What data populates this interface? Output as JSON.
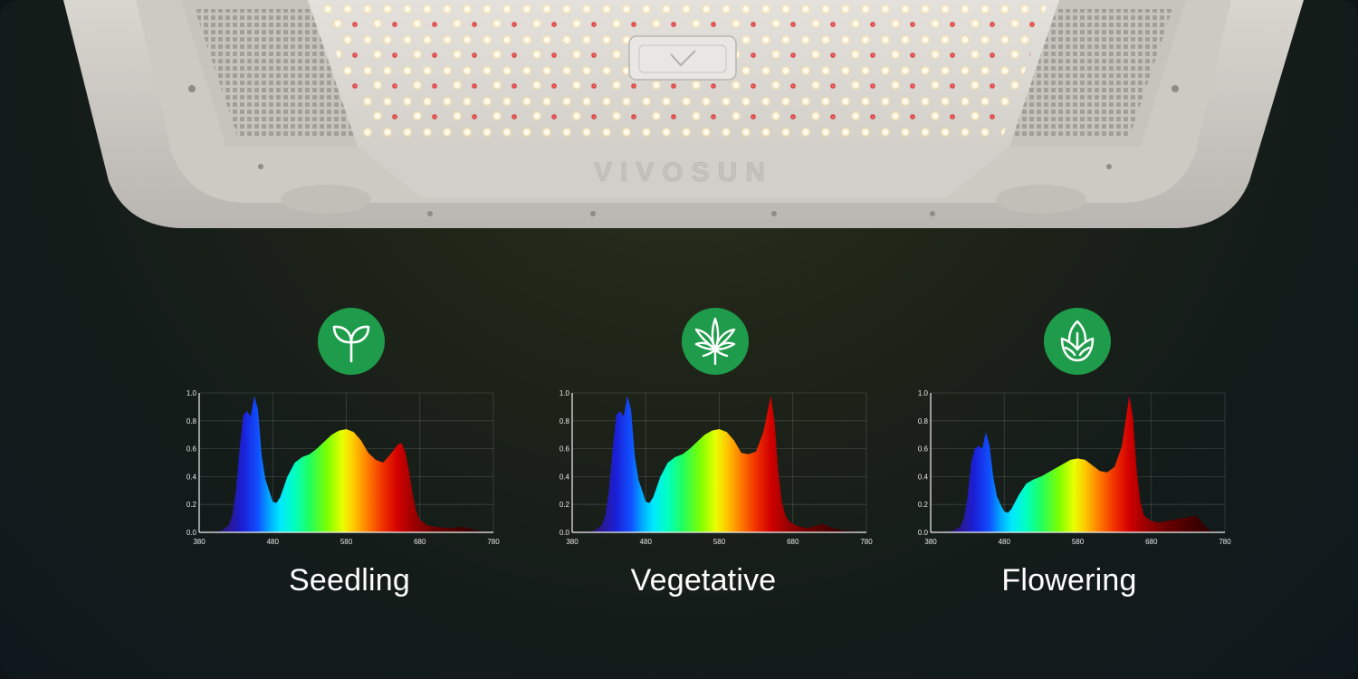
{
  "brand": "VIVOSUN",
  "colors": {
    "icon_badge": "#1f9c4b",
    "label_text": "#ffffff"
  },
  "icons": [
    "sprout-icon",
    "cannabis-leaf-icon",
    "flower-bud-icon"
  ],
  "chart_data": [
    {
      "type": "area",
      "title": "Seedling",
      "xlabel": "",
      "ylabel": "",
      "xlim": [
        380,
        780
      ],
      "ylim": [
        0,
        1.0
      ],
      "xticks": [
        "380",
        "480",
        "580",
        "680",
        "780"
      ],
      "yticks": [
        "0.0",
        "0.2",
        "0.4",
        "0.6",
        "0.8",
        "1.0"
      ],
      "grid": true,
      "x": [
        380,
        400,
        410,
        420,
        425,
        430,
        435,
        440,
        445,
        450,
        455,
        460,
        465,
        470,
        475,
        480,
        485,
        490,
        500,
        510,
        520,
        530,
        540,
        550,
        560,
        570,
        580,
        590,
        600,
        610,
        620,
        630,
        640,
        650,
        655,
        660,
        665,
        670,
        675,
        680,
        690,
        700,
        720,
        740,
        760,
        780
      ],
      "values": [
        0,
        0.003,
        0.01,
        0.05,
        0.12,
        0.3,
        0.6,
        0.84,
        0.87,
        0.83,
        0.98,
        0.88,
        0.55,
        0.38,
        0.3,
        0.22,
        0.21,
        0.25,
        0.4,
        0.5,
        0.54,
        0.56,
        0.6,
        0.65,
        0.7,
        0.73,
        0.74,
        0.72,
        0.66,
        0.57,
        0.52,
        0.5,
        0.56,
        0.63,
        0.64,
        0.58,
        0.45,
        0.28,
        0.15,
        0.09,
        0.05,
        0.04,
        0.03,
        0.04,
        0.01,
        0
      ]
    },
    {
      "type": "area",
      "title": "Vegetative",
      "xlabel": "",
      "ylabel": "",
      "xlim": [
        380,
        780
      ],
      "ylim": [
        0,
        1.0
      ],
      "xticks": [
        "380",
        "480",
        "580",
        "680",
        "780"
      ],
      "yticks": [
        "0.0",
        "0.2",
        "0.4",
        "0.6",
        "0.8",
        "1.0"
      ],
      "grid": true,
      "x": [
        380,
        400,
        410,
        420,
        425,
        430,
        435,
        440,
        445,
        450,
        455,
        460,
        465,
        470,
        475,
        480,
        485,
        490,
        500,
        510,
        520,
        530,
        540,
        550,
        560,
        570,
        580,
        590,
        600,
        610,
        620,
        630,
        640,
        645,
        650,
        655,
        660,
        665,
        670,
        675,
        680,
        690,
        700,
        720,
        740,
        760,
        780
      ],
      "values": [
        0,
        0.003,
        0.01,
        0.05,
        0.12,
        0.3,
        0.6,
        0.84,
        0.87,
        0.83,
        0.98,
        0.88,
        0.55,
        0.38,
        0.3,
        0.22,
        0.21,
        0.25,
        0.4,
        0.5,
        0.54,
        0.56,
        0.6,
        0.65,
        0.7,
        0.73,
        0.74,
        0.72,
        0.66,
        0.57,
        0.56,
        0.58,
        0.72,
        0.85,
        0.98,
        0.8,
        0.45,
        0.22,
        0.12,
        0.08,
        0.06,
        0.04,
        0.03,
        0.06,
        0.02,
        0.01,
        0
      ]
    },
    {
      "type": "area",
      "title": "Flowering",
      "xlabel": "",
      "ylabel": "",
      "xlim": [
        380,
        780
      ],
      "ylim": [
        0,
        1.0
      ],
      "xticks": [
        "380",
        "480",
        "580",
        "680",
        "780"
      ],
      "yticks": [
        "0.0",
        "0.2",
        "0.4",
        "0.6",
        "0.8",
        "1.0"
      ],
      "grid": true,
      "x": [
        380,
        400,
        410,
        420,
        425,
        430,
        435,
        440,
        445,
        450,
        455,
        460,
        465,
        470,
        475,
        480,
        485,
        490,
        500,
        510,
        520,
        530,
        540,
        550,
        560,
        570,
        580,
        590,
        600,
        610,
        620,
        630,
        640,
        645,
        650,
        655,
        660,
        665,
        670,
        680,
        690,
        700,
        710,
        720,
        730,
        740,
        745,
        750,
        760,
        780
      ],
      "values": [
        0,
        0.003,
        0.01,
        0.04,
        0.1,
        0.25,
        0.5,
        0.6,
        0.62,
        0.6,
        0.72,
        0.62,
        0.4,
        0.26,
        0.2,
        0.15,
        0.14,
        0.17,
        0.27,
        0.35,
        0.38,
        0.4,
        0.43,
        0.46,
        0.49,
        0.52,
        0.53,
        0.52,
        0.48,
        0.44,
        0.43,
        0.47,
        0.62,
        0.8,
        0.98,
        0.82,
        0.45,
        0.22,
        0.12,
        0.08,
        0.07,
        0.08,
        0.09,
        0.1,
        0.11,
        0.12,
        0.1,
        0.06,
        0.01,
        0
      ]
    }
  ]
}
